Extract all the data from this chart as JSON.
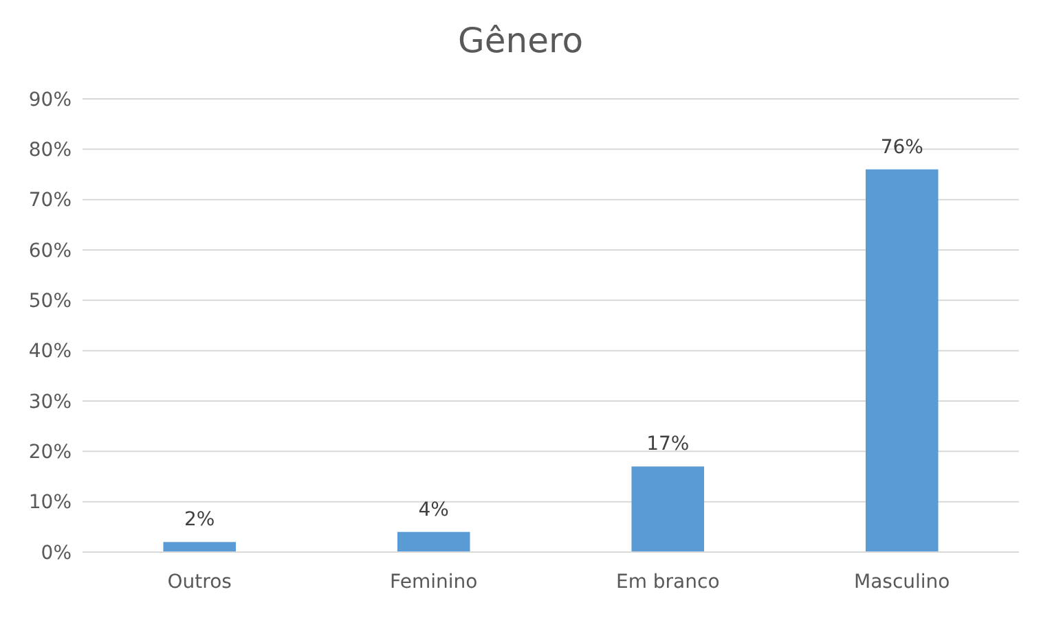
{
  "chart_data": {
    "type": "bar",
    "title": "Gênero",
    "categories": [
      "Outros",
      "Feminino",
      "Em branco",
      "Masculino"
    ],
    "values": [
      2,
      4,
      17,
      76
    ],
    "value_labels": [
      "2%",
      "4%",
      "17%",
      "76%"
    ],
    "color": "#5b9bd5",
    "ylim": [
      0,
      90
    ],
    "yticks": [
      {
        "value": 0,
        "label": "0%"
      },
      {
        "value": 10,
        "label": "10%"
      },
      {
        "value": 20,
        "label": "20%"
      },
      {
        "value": 30,
        "label": "30%"
      },
      {
        "value": 40,
        "label": "40%"
      },
      {
        "value": 50,
        "label": "50%"
      },
      {
        "value": 60,
        "label": "60%"
      },
      {
        "value": 70,
        "label": "70%"
      },
      {
        "value": 80,
        "label": "80%"
      },
      {
        "value": 90,
        "label": "90%"
      }
    ],
    "grid": "y"
  }
}
